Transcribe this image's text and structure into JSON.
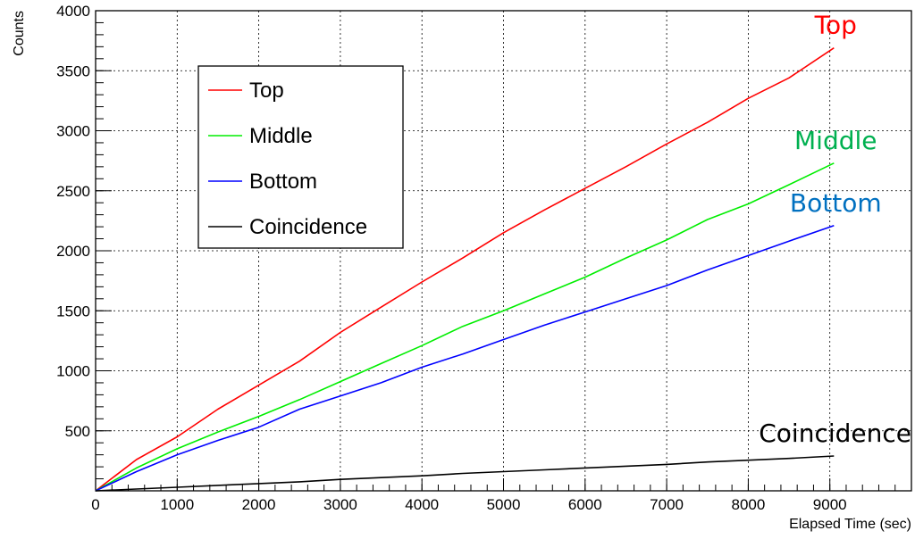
{
  "chart_data": {
    "type": "line",
    "title": "",
    "xlabel": "Elapsed Time (sec)",
    "ylabel": "Counts",
    "xlim": [
      0,
      10000
    ],
    "ylim": [
      0,
      4000
    ],
    "x_ticks": [
      0,
      1000,
      2000,
      3000,
      4000,
      5000,
      6000,
      7000,
      8000,
      9000
    ],
    "y_ticks": [
      500,
      1000,
      1500,
      2000,
      2500,
      3000,
      3500,
      4000
    ],
    "grid": true,
    "legend_position": "top-left",
    "series": [
      {
        "name": "Top",
        "color": "#ff0000",
        "x": [
          0,
          500,
          1000,
          1500,
          2000,
          2500,
          3000,
          3500,
          4000,
          4500,
          5000,
          5500,
          6000,
          6500,
          7000,
          7500,
          8000,
          8500,
          9050
        ],
        "y": [
          0,
          260,
          450,
          680,
          880,
          1080,
          1320,
          1530,
          1740,
          1940,
          2150,
          2340,
          2520,
          2700,
          2890,
          3070,
          3270,
          3440,
          3690
        ]
      },
      {
        "name": "Middle",
        "color": "#00ee00",
        "x": [
          0,
          500,
          1000,
          1500,
          2000,
          2500,
          3000,
          3500,
          4000,
          4500,
          5000,
          5500,
          6000,
          6500,
          7000,
          7500,
          8000,
          8500,
          9050
        ],
        "y": [
          0,
          190,
          350,
          490,
          620,
          760,
          910,
          1060,
          1210,
          1370,
          1500,
          1640,
          1780,
          1940,
          2090,
          2260,
          2390,
          2550,
          2730
        ]
      },
      {
        "name": "Bottom",
        "color": "#0000ff",
        "x": [
          0,
          500,
          1000,
          1500,
          2000,
          2500,
          3000,
          3500,
          4000,
          4500,
          5000,
          5500,
          6000,
          6500,
          7000,
          7500,
          8000,
          8500,
          9050
        ],
        "y": [
          0,
          160,
          300,
          420,
          530,
          680,
          790,
          900,
          1030,
          1140,
          1260,
          1380,
          1490,
          1600,
          1710,
          1840,
          1960,
          2080,
          2210
        ]
      },
      {
        "name": "Coincidence",
        "color": "#000000",
        "x": [
          0,
          500,
          1000,
          1500,
          2000,
          2500,
          3000,
          3500,
          4000,
          4500,
          5000,
          5500,
          6000,
          6500,
          7000,
          7500,
          8000,
          8500,
          9050
        ],
        "y": [
          0,
          15,
          30,
          45,
          60,
          75,
          95,
          110,
          125,
          145,
          160,
          175,
          190,
          205,
          220,
          240,
          255,
          270,
          290
        ]
      }
    ],
    "annotations": [
      {
        "text": "Top",
        "color": "#ff0000",
        "series": "Top"
      },
      {
        "text": "Middle",
        "color": "#00b050",
        "series": "Middle"
      },
      {
        "text": "Bottom",
        "color": "#0070c0",
        "series": "Bottom"
      },
      {
        "text": "Coincidence",
        "color": "#000000",
        "series": "Coincidence"
      }
    ]
  }
}
